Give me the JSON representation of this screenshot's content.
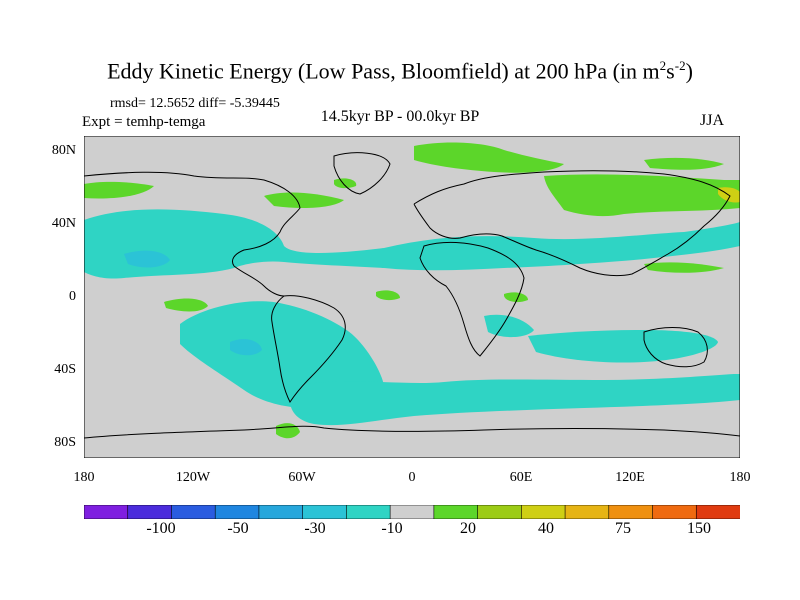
{
  "header": {
    "title_main": "Eddy Kinetic Energy (Low Pass, Bloomfield) at 200 hPa (in m",
    "title_sup1": "2",
    "title_mid": "s",
    "title_sup2": "-2",
    "title_end": ")",
    "stats": "rmsd= 12.5652 diff= -5.39445",
    "experiment": "Expt = temhp-temga",
    "subtitle": "14.5kyr BP - 00.0kyr BP",
    "season": "JJA"
  },
  "axes": {
    "lat_labels": [
      "80N",
      "40N",
      "0",
      "40S",
      "80S"
    ],
    "lon_labels": [
      "180",
      "120W",
      "60W",
      "0",
      "60E",
      "120E",
      "180"
    ]
  },
  "colorbar": {
    "colors": [
      "#7f1fe0",
      "#4b2cdc",
      "#2a5ce0",
      "#1f86e0",
      "#27a7dc",
      "#2bc3d6",
      "#2fd4c4",
      "#cfcfcf",
      "#5cd62a",
      "#9ccc16",
      "#cfcf14",
      "#e6b414",
      "#ef9010",
      "#ef6a10",
      "#e03b10"
    ],
    "labels": [
      "-100",
      "-50",
      "-30",
      "-10",
      "20",
      "40",
      "75",
      "150"
    ]
  },
  "colors": {
    "land_background": "#cfcfcf",
    "negative_fill": "#2fd4c4",
    "negative_strong": "#2bc3d6",
    "positive_fill": "#5cd62a",
    "positive_strong": "#9ccc16"
  }
}
